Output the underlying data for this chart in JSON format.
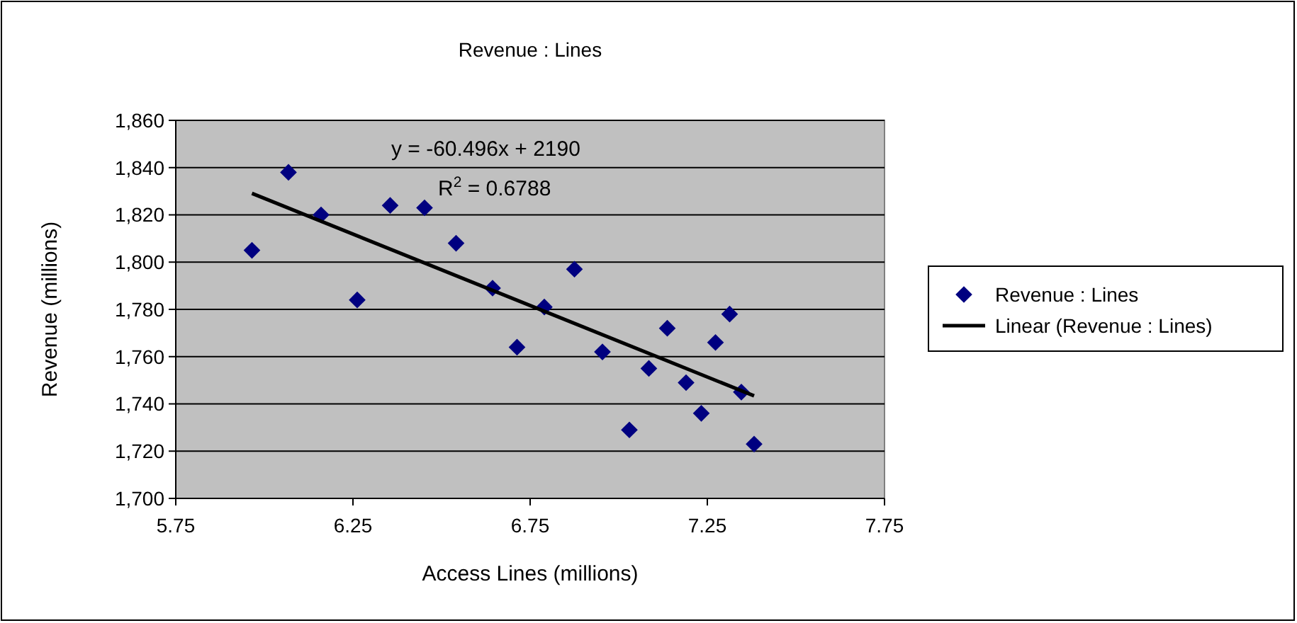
{
  "chart_data": {
    "type": "scatter",
    "title": "Revenue : Lines",
    "xlabel": "Access Lines (millions)",
    "ylabel": "Revenue (millions)",
    "xlim": [
      5.75,
      7.75
    ],
    "xticks": [
      5.75,
      6.25,
      6.75,
      7.25,
      7.75
    ],
    "ylim": [
      1700,
      1860
    ],
    "yticks": [
      {
        "value": 1700,
        "label": "1,700"
      },
      {
        "value": 1720,
        "label": "1,720"
      },
      {
        "value": 1740,
        "label": "1,740"
      },
      {
        "value": 1760,
        "label": "1,760"
      },
      {
        "value": 1780,
        "label": "1,780"
      },
      {
        "value": 1800,
        "label": "1,800"
      },
      {
        "value": 1820,
        "label": "1,820"
      },
      {
        "value": 1840,
        "label": "1,840"
      },
      {
        "value": 1860,
        "label": "1,860"
      }
    ],
    "grid": "y",
    "legend": "right",
    "marker": "diamond",
    "annotations": [
      "y = -60.496x + 2190",
      "R$^{2}$ = 0.6788"
    ],
    "series": [
      {
        "name": "Revenue : Lines",
        "color": "#000080",
        "x": [
          5.965,
          6.068,
          6.16,
          6.262,
          6.355,
          6.452,
          6.541,
          6.644,
          6.713,
          6.79,
          6.875,
          6.954,
          7.03,
          7.085,
          7.137,
          7.19,
          7.233,
          7.273,
          7.313,
          7.346,
          7.382
        ],
        "values": [
          1805,
          1838,
          1820,
          1784,
          1824,
          1823,
          1808,
          1789,
          1764,
          1781,
          1797,
          1762,
          1729,
          1755,
          1772,
          1749,
          1736,
          1766,
          1778,
          1745,
          1723
        ]
      },
      {
        "name": "Linear (Revenue : Lines)",
        "type": "line",
        "color": "#000000",
        "line_style": "solid",
        "marker": "none",
        "x": [
          5.965,
          7.382
        ],
        "values": [
          1829.1,
          1743.4
        ]
      }
    ]
  }
}
